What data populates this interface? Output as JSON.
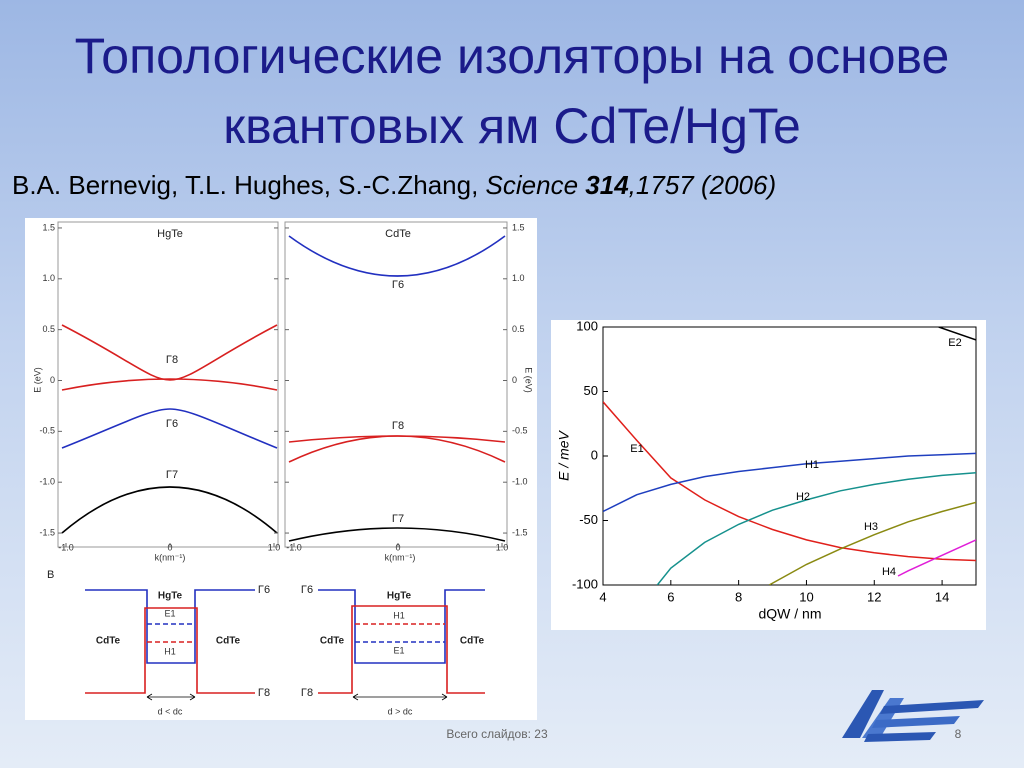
{
  "slide": {
    "title_lines": [
      "Топологические изоляторы на основе",
      "квантовых ям CdTe/HgTe"
    ],
    "citation": {
      "authors": "B.A. Bernevig, T.L. Hughes, S.-C.Zhang,",
      "journal": "Science",
      "volume": "314",
      "pages": ",1757 (2006)"
    },
    "footer": {
      "total_slides": "Всего слайдов: 23",
      "page_number": 8
    }
  },
  "band_figure": {
    "panels": [
      {
        "title": "HgTe",
        "labels": [
          "Γ8",
          "Γ6",
          "Γ7"
        ]
      },
      {
        "title": "CdTe",
        "labels": [
          "Γ6",
          "Γ8",
          "Γ7"
        ]
      }
    ],
    "y_label": "E (eV)",
    "x_label": "k(nm⁻¹)",
    "yticks": [
      {
        "value": 1.5,
        "label": "1.5"
      },
      {
        "value": 1,
        "label": "1.0"
      },
      {
        "value": 0.5,
        "label": "0.5"
      },
      0,
      {
        "value": -0.5,
        "label": "-0.5"
      },
      {
        "value": -1,
        "label": "-1.0"
      },
      {
        "value": -1.5,
        "label": "-1.5"
      }
    ],
    "xticks": [
      {
        "value": -1,
        "label": "-1.0"
      },
      0,
      {
        "value": 1,
        "label": "1.0"
      }
    ],
    "panel_b": {
      "label": "B",
      "diagrams": [
        {
          "well": "HgTe",
          "barrier_left": "CdTe",
          "barrier_right": "CdTe",
          "levels": [
            "E1",
            "H1"
          ],
          "bands": [
            "Γ6",
            "Γ8"
          ],
          "condition": "d < dc"
        },
        {
          "well": "HgTe",
          "barrier_left": "CdTe",
          "barrier_right": "CdTe",
          "levels": [
            "H1",
            "E1"
          ],
          "bands": [
            "Γ6",
            "Γ8"
          ],
          "condition": "d > dc"
        }
      ]
    }
  },
  "chart_data": {
    "type": "line",
    "x_label": "dQW / nm",
    "y_label": "E / meV",
    "xlim": [
      4,
      15
    ],
    "ylim": [
      -100,
      100
    ],
    "xticks": [
      4,
      6,
      8,
      10,
      12,
      14
    ],
    "yticks": [
      100,
      50,
      0,
      -50,
      -100
    ],
    "series": [
      {
        "name": "E1",
        "color": "#e0201b",
        "x": [
          4,
          5,
          6,
          7,
          8,
          9,
          10,
          11,
          12,
          13,
          14,
          15
        ],
        "values": [
          42,
          12,
          -17,
          -34,
          -47,
          -57,
          -65,
          -71,
          -75,
          -78,
          -80,
          -81
        ]
      },
      {
        "name": "H1",
        "color": "#1f3fbf",
        "x": [
          4,
          5,
          6,
          7,
          8,
          9,
          10,
          11,
          12,
          13,
          14,
          15
        ],
        "values": [
          -43,
          -30,
          -22,
          -16,
          -12,
          -9,
          -6,
          -4,
          -2,
          0,
          1,
          2
        ]
      },
      {
        "name": "H2",
        "color": "#16918d",
        "x": [
          5.6,
          6,
          7,
          8,
          9,
          10,
          11,
          12,
          13,
          14,
          15
        ],
        "values": [
          -100,
          -87,
          -67,
          -53,
          -42,
          -34,
          -27,
          -22,
          -18,
          -15,
          -13
        ]
      },
      {
        "name": "H3",
        "color": "#8a8a12",
        "x": [
          8.9,
          10,
          11,
          12,
          13,
          14,
          15
        ],
        "values": [
          -100,
          -84,
          -72,
          -61,
          -51,
          -43,
          -36
        ]
      },
      {
        "name": "H4",
        "color": "#e01ed8",
        "x": [
          12.7,
          13,
          14,
          15
        ],
        "values": [
          -93,
          -89,
          -77,
          -65
        ]
      },
      {
        "name": "E2",
        "color": "#000000",
        "x": [
          13.9,
          15
        ],
        "values": [
          100,
          90
        ]
      }
    ]
  }
}
